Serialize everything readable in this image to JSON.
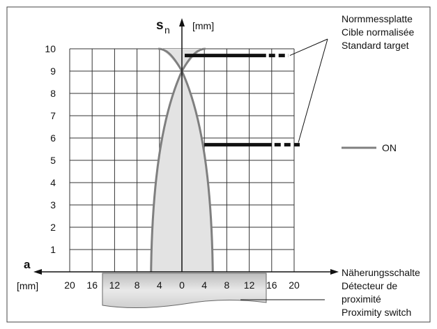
{
  "chart_data": {
    "type": "line",
    "title": "",
    "x_axis": {
      "label": "a",
      "unit": "[mm]",
      "tick_labels": [
        "20",
        "16",
        "12",
        "8",
        "4",
        "0",
        "4",
        "8",
        "12",
        "16",
        "20"
      ],
      "range": [
        -20,
        20
      ]
    },
    "y_axis": {
      "label": "s",
      "label_subscript": "n",
      "unit": "[mm]",
      "tick_labels": [
        "1",
        "2",
        "3",
        "4",
        "5",
        "6",
        "7",
        "8",
        "9",
        "10"
      ],
      "range": [
        0,
        10
      ]
    },
    "grid": true,
    "series": [
      {
        "name": "ON",
        "color": "#7f7f7f",
        "fill": "#e3e3e3",
        "inner_curve": [
          [
            -5.5,
            0
          ],
          [
            -5,
            3
          ],
          [
            -3.8,
            6
          ],
          [
            -2,
            8
          ],
          [
            0,
            9
          ]
        ],
        "outer_curve": [
          [
            -5.5,
            0
          ],
          [
            -5,
            3
          ],
          [
            -3.8,
            6
          ],
          [
            -2,
            8
          ],
          [
            0,
            9
          ],
          [
            4,
            10
          ],
          [
            -4,
            10
          ],
          [
            0,
            9
          ],
          [
            2,
            8
          ],
          [
            3.8,
            6
          ],
          [
            5,
            3
          ],
          [
            5.5,
            0
          ]
        ]
      }
    ],
    "targets": [
      {
        "y": 9.7,
        "x_start": 0.5,
        "x_end": 15,
        "dash_to": 19
      },
      {
        "y": 5.7,
        "x_start": 4,
        "x_end": 16,
        "dash_to": 21
      }
    ],
    "annotations": {
      "target_label": [
        "Normmessplatte",
        "Cible normalisée",
        "Standard target"
      ],
      "switch_label": [
        "Näherungsschalte",
        "Détecteur de",
        "proximité",
        "Proximity switch"
      ],
      "legend_label": "ON"
    }
  }
}
